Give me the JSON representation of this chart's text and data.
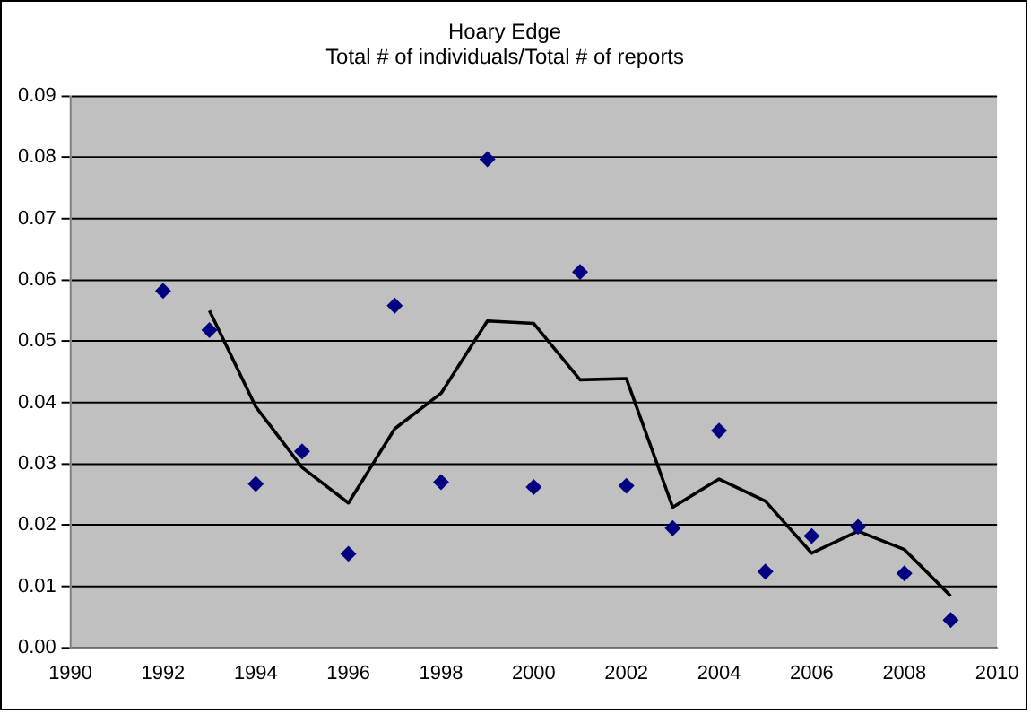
{
  "chart_data": {
    "type": "scatter",
    "title": "Hoary Edge\nTotal # of individuals/Total # of reports",
    "series": [
      {
        "color": "#000080",
        "marker": "diamond",
        "x": [
          1992,
          1993,
          1994,
          1995,
          1996,
          1997,
          1998,
          1999,
          2000,
          2001,
          2002,
          2003,
          2004,
          2005,
          2006,
          2007,
          2008,
          2009
        ],
        "values": [
          0.0582,
          0.0518,
          0.0267,
          0.032,
          0.0153,
          0.0558,
          0.027,
          0.0797,
          0.0262,
          0.0613,
          0.0264,
          0.0195,
          0.0354,
          0.0124,
          0.0182,
          0.0197,
          0.0121,
          0.0045
        ]
      },
      {
        "type": "line",
        "color": "#000000",
        "marker": "none",
        "x": [
          1993,
          1994,
          1995,
          1996,
          1997,
          1998,
          1999,
          2000,
          2001,
          2002,
          2003,
          2004,
          2005,
          2006,
          2007,
          2008,
          2009
        ],
        "values": [
          0.055,
          0.0393,
          0.0294,
          0.0236,
          0.0357,
          0.0415,
          0.0533,
          0.0529,
          0.0437,
          0.0439,
          0.0229,
          0.0275,
          0.0239,
          0.0154,
          0.019,
          0.016,
          0.0084
        ]
      }
    ],
    "xlim": [
      1990,
      2010
    ],
    "xticks": [
      1990,
      1992,
      1994,
      1996,
      1998,
      2000,
      2002,
      2004,
      2006,
      2008,
      2010
    ],
    "ylim": [
      0,
      0.09
    ],
    "yticks": [
      {
        "value": 0,
        "label": "0.00"
      },
      {
        "value": 0.01,
        "label": "0.01"
      },
      {
        "value": 0.02,
        "label": "0.02"
      },
      {
        "value": 0.03,
        "label": "0.03"
      },
      {
        "value": 0.04,
        "label": "0.04"
      },
      {
        "value": 0.05,
        "label": "0.05"
      },
      {
        "value": 0.06,
        "label": "0.06"
      },
      {
        "value": 0.07,
        "label": "0.07"
      },
      {
        "value": 0.08,
        "label": "0.08"
      },
      {
        "value": 0.09,
        "label": "0.09"
      }
    ],
    "grid": "y",
    "legend": false
  }
}
